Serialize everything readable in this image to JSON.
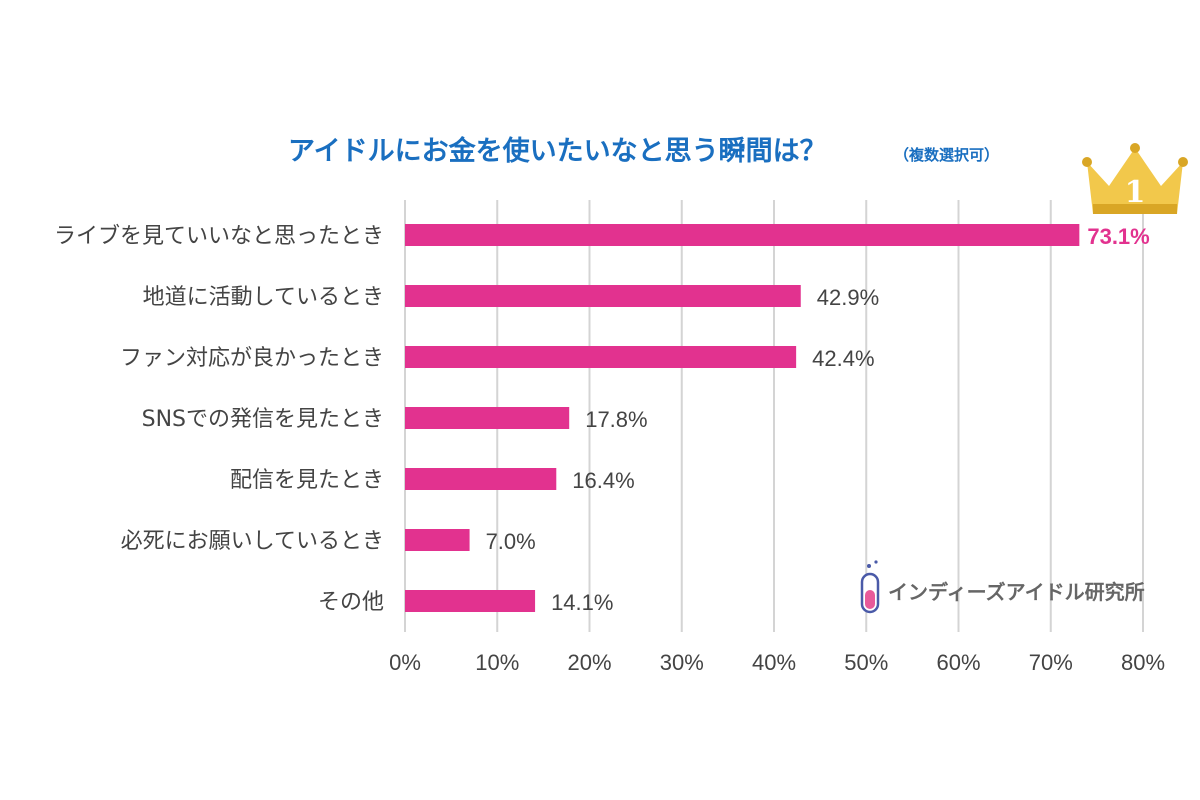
{
  "colors": {
    "title": "#1a6fc0",
    "bar": "#e2328f",
    "highlight": "#e2328f",
    "text": "#444444",
    "grid": "#d4d4d4",
    "crown": "#f2c84b",
    "crown_dark": "#d9a625",
    "watermark": "#666666",
    "logo_accent": "#e85a9a",
    "logo_outline": "#4a5aa8"
  },
  "chart_data": {
    "type": "bar",
    "orientation": "horizontal",
    "title": "アイドルにお金を使いたいなと思う瞬間は？",
    "subtitle": "（複数選択可）",
    "categories": [
      "ライブを見ていいなと思ったとき",
      "地道に活動しているとき",
      "ファン対応が良かったとき",
      "SNSでの発信を見たとき",
      "配信を見たとき",
      "必死にお願いしているとき",
      "その他"
    ],
    "values": [
      73.1,
      42.9,
      42.4,
      17.8,
      16.4,
      7.0,
      14.1
    ],
    "value_labels": [
      "73.1%",
      "42.9%",
      "42.4%",
      "17.8%",
      "16.4%",
      "7.0%",
      "14.1%"
    ],
    "highlight_index": 0,
    "rank_badge": "1",
    "xlim": [
      0,
      80
    ],
    "xticks": [
      0,
      10,
      20,
      30,
      40,
      50,
      60,
      70,
      80
    ],
    "xtick_labels": [
      "0%",
      "10%",
      "20%",
      "30%",
      "40%",
      "50%",
      "60%",
      "70%",
      "80%"
    ],
    "xlabel": "",
    "ylabel": "",
    "grid": true,
    "legend": "none"
  },
  "watermark": {
    "text": "インディーズアイドル研究所",
    "icon": "test-tube-icon"
  }
}
